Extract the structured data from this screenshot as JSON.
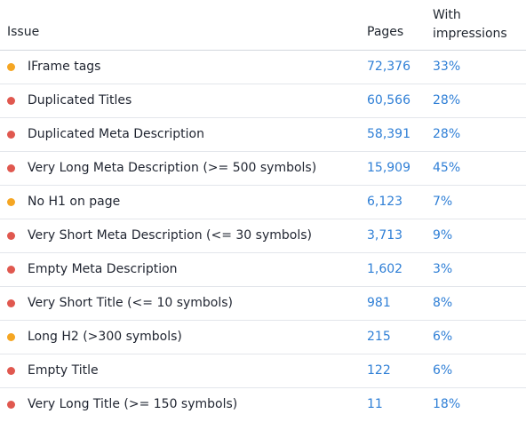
{
  "headers": {
    "issue": "Issue",
    "pages": "Pages",
    "impressions_line1": "With",
    "impressions_line2": "impressions"
  },
  "colors": {
    "warning": "#f5a623",
    "error": "#e0584f",
    "link": "#2f7fd6"
  },
  "rows": [
    {
      "severity": "warning",
      "issue": "IFrame tags",
      "pages": "72,376",
      "impressions": "33%"
    },
    {
      "severity": "error",
      "issue": "Duplicated Titles",
      "pages": "60,566",
      "impressions": "28%"
    },
    {
      "severity": "error",
      "issue": "Duplicated Meta Description",
      "pages": "58,391",
      "impressions": "28%"
    },
    {
      "severity": "error",
      "issue": "Very Long Meta Description (>= 500 symbols)",
      "pages": "15,909",
      "impressions": "45%"
    },
    {
      "severity": "warning",
      "issue": "No H1 on page",
      "pages": "6,123",
      "impressions": "7%"
    },
    {
      "severity": "error",
      "issue": "Very Short Meta Description (<= 30 symbols)",
      "pages": "3,713",
      "impressions": "9%"
    },
    {
      "severity": "error",
      "issue": "Empty Meta Description",
      "pages": "1,602",
      "impressions": "3%"
    },
    {
      "severity": "error",
      "issue": "Very Short Title (<= 10 symbols)",
      "pages": "981",
      "impressions": "8%"
    },
    {
      "severity": "warning",
      "issue": "Long H2 (>300 symbols)",
      "pages": "215",
      "impressions": "6%"
    },
    {
      "severity": "error",
      "issue": "Empty Title",
      "pages": "122",
      "impressions": "6%"
    },
    {
      "severity": "error",
      "issue": "Very Long Title (>= 150 symbols)",
      "pages": "11",
      "impressions": "18%"
    }
  ]
}
